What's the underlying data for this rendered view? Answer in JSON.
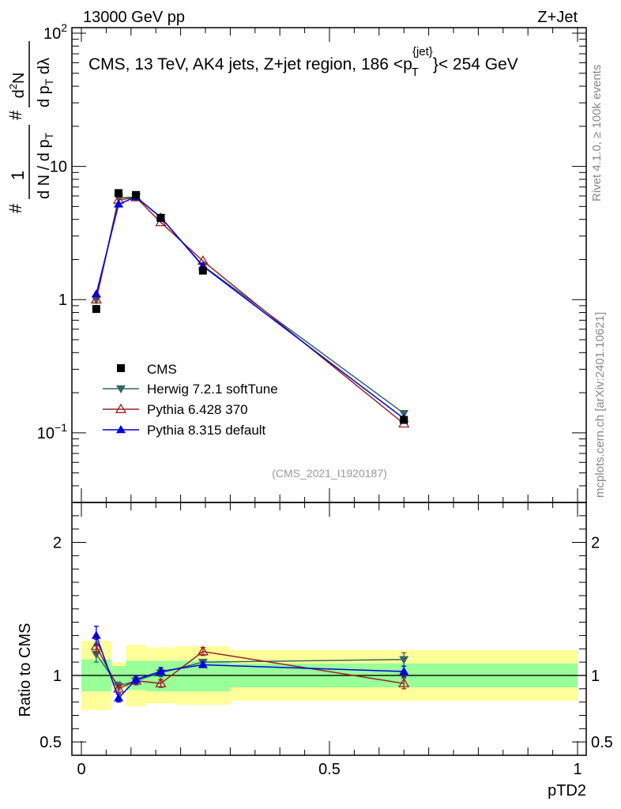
{
  "header": {
    "left": "13000 GeV pp",
    "right": "Z+Jet"
  },
  "side_labels": {
    "rivet": "Rivet 4.1.0, ≥ 100k events",
    "mcplots": "mcplots.cern.ch [arXiv:2401.10621]"
  },
  "chart_data": {
    "type": "line",
    "title": "CMS, 13 TeV, AK4 jets, Z+jet region, 186 < p_T^{jet} < 254 GeV",
    "title_parts": {
      "prefix": "CMS, 13 TeV, AK4 jets, Z+jet region, 186 <p",
      "sub": "T",
      "sup": "{jet}",
      "suffix": "}< 254 GeV"
    },
    "analysis_id": "(CMS_2021_I1920187)",
    "xlabel": "pTD2",
    "ylabel": "1/N dN/dp_T d^2N/dp_T dλ",
    "ylabel_parts": {
      "hash1": "#",
      "top1": "1",
      "bottom1": "d N / d p",
      "bottom1_sub": "T",
      "hash2": "#",
      "top2_a": "d",
      "top2_sup": "2",
      "top2_b": "N",
      "bottom2": "d p",
      "bottom2_sub": "T",
      "bottom2_b": " dλ"
    },
    "ratio_ylabel": "Ratio to CMS",
    "xlim": [
      0,
      1
    ],
    "ylim_main": [
      0.03,
      110
    ],
    "ylim_ratio": [
      0.4,
      2.3
    ],
    "x_ticks": [
      "0",
      "0.5",
      "1"
    ],
    "y_ticks_main": [
      {
        "value": 100,
        "base": "10",
        "exp": "2"
      },
      {
        "value": 10,
        "base": "10",
        "exp": ""
      },
      {
        "value": 1,
        "base": "1",
        "exp": ""
      },
      {
        "value": 0.1,
        "base": "10",
        "exp": "−1"
      }
    ],
    "y_ticks_ratio": [
      "0.5",
      "1",
      "2"
    ],
    "bins": [
      {
        "lo": 0.0,
        "hi": 0.06,
        "x": 0.03
      },
      {
        "lo": 0.06,
        "hi": 0.09,
        "x": 0.075
      },
      {
        "lo": 0.09,
        "hi": 0.13,
        "x": 0.11
      },
      {
        "lo": 0.13,
        "hi": 0.19,
        "x": 0.16
      },
      {
        "lo": 0.19,
        "hi": 0.3,
        "x": 0.245
      },
      {
        "lo": 0.3,
        "hi": 1.0,
        "x": 0.65
      }
    ],
    "cms": {
      "name": "CMS",
      "color": "#000000",
      "values": [
        0.85,
        6.3,
        6.1,
        4.1,
        1.65,
        0.125
      ],
      "band_stat_lo": [
        0.88,
        0.93,
        0.89,
        0.88,
        0.88,
        0.91
      ],
      "band_stat_hi": [
        1.12,
        1.07,
        1.11,
        1.11,
        1.11,
        1.09
      ],
      "band_tot_lo": [
        0.74,
        0.9,
        0.77,
        0.79,
        0.78,
        0.81
      ],
      "band_tot_hi": [
        1.26,
        1.1,
        1.23,
        1.21,
        1.22,
        1.19
      ]
    },
    "series": [
      {
        "name": "Herwig 7.2.1 softTune",
        "color": "#336666",
        "marker": "triangle-down",
        "values": [
          1.0,
          5.8,
          5.9,
          4.15,
          1.8,
          0.14
        ],
        "ratio": [
          1.16,
          0.92,
          0.96,
          1.02,
          1.1,
          1.12
        ],
        "ratio_err": [
          0.06,
          0.03,
          0.03,
          0.03,
          0.02,
          0.05
        ]
      },
      {
        "name": "Pythia 6.428 370",
        "color": "#992222",
        "marker": "triangle-open",
        "values": [
          1.0,
          5.6,
          5.85,
          3.8,
          1.95,
          0.117
        ],
        "ratio": [
          1.22,
          0.9,
          0.96,
          0.94,
          1.18,
          0.94
        ],
        "ratio_err": [
          0.05,
          0.03,
          0.03,
          0.03,
          0.03,
          0.04
        ]
      },
      {
        "name": "Pythia 8.315 default",
        "color": "#0000dd",
        "marker": "triangle-up",
        "values": [
          1.1,
          5.2,
          5.9,
          4.15,
          1.78,
          0.128
        ],
        "ratio": [
          1.3,
          0.83,
          0.97,
          1.03,
          1.08,
          1.03
        ],
        "ratio_err": [
          0.07,
          0.03,
          0.03,
          0.03,
          0.02,
          0.04
        ]
      }
    ],
    "legend_position": "lower-left"
  }
}
